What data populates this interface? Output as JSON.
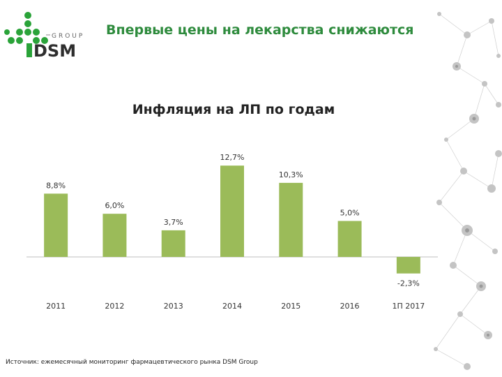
{
  "header": {
    "title": "Впервые цены на лекарства снижаются",
    "logo_text_group": "GROUP",
    "logo_text_brand": "DSM"
  },
  "colors": {
    "accent": "#2e8b3d",
    "bar": "#9bbb59",
    "logo_green": "#2aa339"
  },
  "chart_data": {
    "type": "bar",
    "title": "Инфляция на ЛП по годам",
    "categories": [
      "2011",
      "2012",
      "2013",
      "2014",
      "2015",
      "2016",
      "1П 2017"
    ],
    "values": [
      8.8,
      6.0,
      3.7,
      12.7,
      10.3,
      5.0,
      -2.3
    ],
    "labels": [
      "8,8%",
      "6,0%",
      "3,7%",
      "12,7%",
      "10,3%",
      "5,0%",
      "-2,3%"
    ],
    "xlabel": "",
    "ylabel": "",
    "grid": false,
    "legend": "none"
  },
  "footer": {
    "source": "Источник: ежемесячный мониторинг фармацевтического рынка DSM Group"
  }
}
